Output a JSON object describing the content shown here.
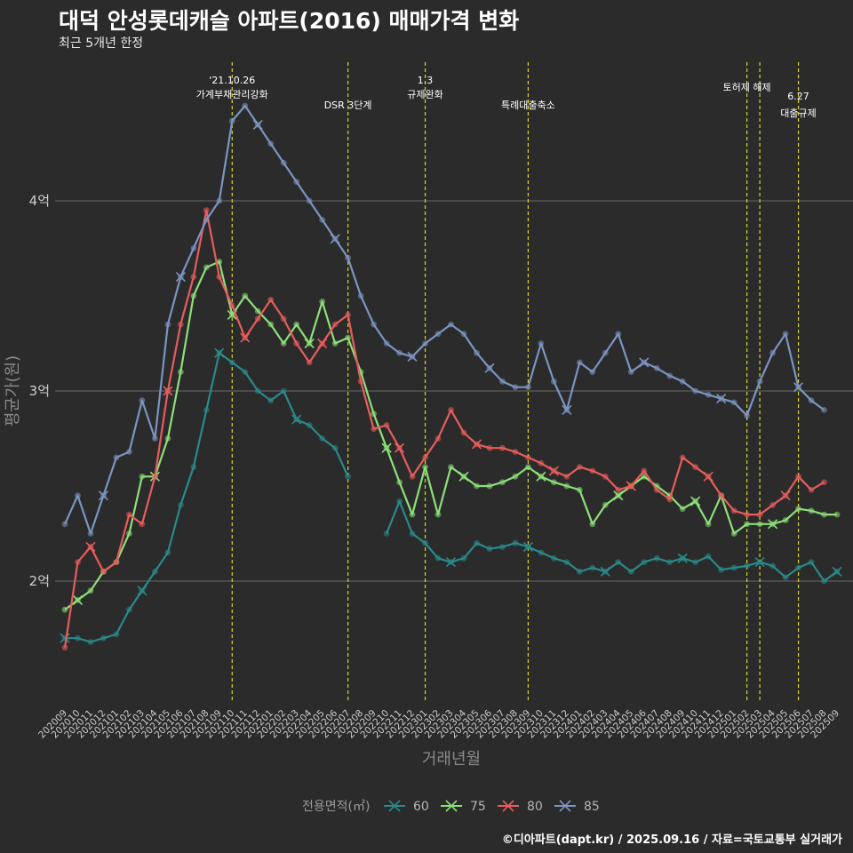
{
  "header": {
    "title": "대덕 안성롯데캐슬 아파트(2016) 매매가격 변화",
    "subtitle": "최근 5개년 한정"
  },
  "footer": {
    "credit": "©디아파트(dapt.kr) / 2025.09.16 / 자료=국토교통부 실거래가"
  },
  "colors": {
    "background": "#2b2b2b",
    "grid": "#6a6a6a",
    "vline": "#d6d62a"
  },
  "chart_data": {
    "type": "line",
    "ylabel": "평균가(원)",
    "xlabel": "거래년월",
    "ylim": [
      1.35,
      4.7
    ],
    "yticks": [
      {
        "value": 2,
        "label": "2억"
      },
      {
        "value": 3,
        "label": "3억"
      },
      {
        "value": 4,
        "label": "4억"
      }
    ],
    "categories": [
      "202009",
      "202010",
      "202011",
      "202012",
      "202101",
      "202102",
      "202103",
      "202104",
      "202105",
      "202106",
      "202107",
      "202108",
      "202109",
      "202110",
      "202111",
      "202112",
      "202201",
      "202202",
      "202203",
      "202204",
      "202205",
      "202206",
      "202207",
      "202208",
      "202209",
      "202210",
      "202211",
      "202212",
      "202301",
      "202302",
      "202303",
      "202304",
      "202305",
      "202306",
      "202307",
      "202308",
      "202309",
      "202310",
      "202311",
      "202312",
      "202401",
      "202402",
      "202403",
      "202404",
      "202405",
      "202406",
      "202407",
      "202408",
      "202409",
      "202410",
      "202411",
      "202412",
      "202501",
      "202502",
      "202503",
      "202504",
      "202505",
      "202506",
      "202507",
      "202508",
      "202509"
    ],
    "legend": {
      "title": "전용면적(㎡)",
      "position": "bottom"
    },
    "series": [
      {
        "name": "60",
        "color": "#2a8a8a",
        "values": [
          1.7,
          1.7,
          1.68,
          1.7,
          1.72,
          1.85,
          1.95,
          2.05,
          2.15,
          2.4,
          2.6,
          2.9,
          3.2,
          3.15,
          3.1,
          3.0,
          2.95,
          3.0,
          2.85,
          2.82,
          2.75,
          2.7,
          2.55,
          null,
          null,
          2.25,
          2.42,
          2.25,
          2.2,
          2.12,
          2.1,
          2.12,
          2.2,
          2.17,
          2.18,
          2.2,
          2.18,
          2.15,
          2.12,
          2.1,
          2.05,
          2.07,
          2.05,
          2.1,
          2.05,
          2.1,
          2.12,
          2.1,
          2.12,
          2.1,
          2.13,
          2.06,
          2.07,
          2.08,
          2.1,
          2.08,
          2.02,
          2.07,
          2.1,
          2.0,
          2.05
        ]
      },
      {
        "name": "75",
        "color": "#8de07a",
        "values": [
          1.85,
          1.9,
          1.95,
          2.05,
          2.1,
          2.25,
          2.55,
          2.55,
          2.75,
          3.1,
          3.5,
          3.65,
          3.68,
          3.4,
          3.5,
          3.42,
          3.35,
          3.25,
          3.35,
          3.25,
          3.47,
          3.25,
          3.28,
          3.1,
          2.88,
          2.7,
          2.52,
          2.35,
          2.6,
          2.35,
          2.6,
          2.55,
          2.5,
          2.5,
          2.52,
          2.55,
          2.6,
          2.55,
          2.52,
          2.5,
          2.48,
          2.3,
          2.4,
          2.45,
          2.5,
          2.55,
          2.5,
          2.45,
          2.38,
          2.42,
          2.3,
          2.45,
          2.25,
          2.3,
          2.3,
          2.3,
          2.32,
          2.38,
          2.37,
          2.35,
          2.35
        ]
      },
      {
        "name": "80",
        "color": "#e85c5c",
        "values": [
          1.65,
          2.1,
          2.18,
          2.05,
          2.1,
          2.35,
          2.3,
          2.55,
          3.0,
          3.35,
          3.6,
          3.95,
          3.6,
          3.45,
          3.28,
          3.38,
          3.48,
          3.38,
          3.25,
          3.15,
          3.25,
          3.35,
          3.4,
          3.05,
          2.8,
          2.82,
          2.7,
          2.55,
          2.65,
          2.75,
          2.9,
          2.78,
          2.72,
          2.7,
          2.7,
          2.68,
          2.65,
          2.62,
          2.58,
          2.55,
          2.6,
          2.58,
          2.55,
          2.48,
          2.5,
          2.58,
          2.48,
          2.43,
          2.65,
          2.6,
          2.55,
          2.45,
          2.37,
          2.35,
          2.35,
          2.4,
          2.45,
          2.55,
          2.48,
          2.52,
          null
        ]
      },
      {
        "name": "85",
        "color": "#7b95c2",
        "values": [
          2.3,
          2.45,
          2.25,
          2.45,
          2.65,
          2.68,
          2.95,
          2.75,
          3.35,
          3.6,
          3.75,
          3.9,
          4.0,
          4.42,
          4.5,
          4.4,
          4.3,
          4.2,
          4.1,
          4.0,
          3.9,
          3.8,
          3.7,
          3.5,
          3.35,
          3.25,
          3.2,
          3.18,
          3.25,
          3.3,
          3.35,
          3.3,
          3.2,
          3.12,
          3.05,
          3.02,
          3.02,
          3.25,
          3.05,
          2.9,
          3.15,
          3.1,
          3.2,
          3.3,
          3.1,
          3.15,
          3.12,
          3.08,
          3.05,
          3.0,
          2.98,
          2.96,
          2.94,
          2.87,
          3.05,
          3.2,
          3.3,
          3.02,
          2.95,
          2.9,
          null
        ]
      }
    ],
    "events": [
      {
        "date": "202110",
        "label": [
          "'21.10.26",
          "가계부채관리강화"
        ]
      },
      {
        "date": "202207",
        "label": [
          "DSR 3단계"
        ]
      },
      {
        "date": "202301",
        "label": [
          "1.3",
          "규제완화"
        ]
      },
      {
        "date": "202309",
        "label": [
          "특례대출축소"
        ]
      },
      {
        "date": "202502",
        "label": [
          "토허제 해제"
        ]
      },
      {
        "date": "202503",
        "label": []
      },
      {
        "date": "202506",
        "label": [
          "6.27",
          "대출규제"
        ]
      }
    ]
  }
}
